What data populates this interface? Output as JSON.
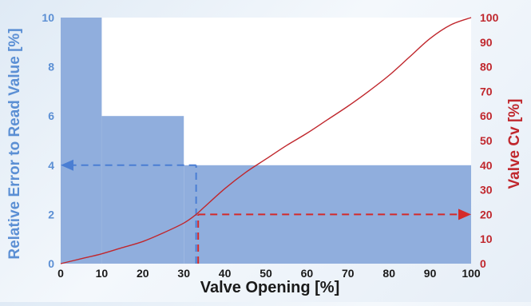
{
  "chart_data": {
    "type": "line",
    "xlabel": "Valve Opening [%]",
    "ylabel_left": "Relative Error to Read Value [%]",
    "ylabel_right": "Valve Cv [%]",
    "xlim": [
      0,
      100
    ],
    "ylim_left": [
      0,
      10
    ],
    "ylim_right": [
      0,
      100
    ],
    "x_ticks": [
      "0",
      "10",
      "20",
      "30",
      "40",
      "50",
      "60",
      "70",
      "80",
      "90",
      "100"
    ],
    "y_left_ticks": [
      "0",
      "2",
      "4",
      "6",
      "8",
      "10"
    ],
    "y_right_ticks": [
      "0",
      "10",
      "20",
      "30",
      "40",
      "50",
      "60",
      "70",
      "80",
      "90",
      "100"
    ],
    "error_steps": [
      {
        "x_start": 0,
        "x_end": 10,
        "value": 10
      },
      {
        "x_start": 10,
        "x_end": 30,
        "value": 6
      },
      {
        "x_start": 30,
        "x_end": 100,
        "value": 4
      }
    ],
    "cv_curve": {
      "x": [
        0,
        5,
        10,
        15,
        20,
        25,
        30,
        33,
        35,
        40,
        45,
        50,
        55,
        60,
        65,
        70,
        75,
        80,
        85,
        90,
        95,
        100
      ],
      "y": [
        0,
        2,
        4,
        6.5,
        9,
        12.5,
        16.5,
        20,
        23,
        30.5,
        37,
        42.5,
        48,
        53,
        58.5,
        64,
        70,
        76.5,
        84,
        91.5,
        97,
        100
      ]
    },
    "annotations": {
      "left_arrow": {
        "x": 33,
        "y_left": 4
      },
      "right_arrow": {
        "x": 33.5,
        "y_right": 20
      }
    },
    "grid": false,
    "colors": {
      "fill": "#90aedd",
      "curve": "#c0272d",
      "left_axis": "#5b8fd4",
      "right_axis": "#c0272d",
      "blue_dash": "#4a7ed3",
      "red_dash": "#d42a2a",
      "x_axis_text": "#1a1a1a"
    }
  }
}
